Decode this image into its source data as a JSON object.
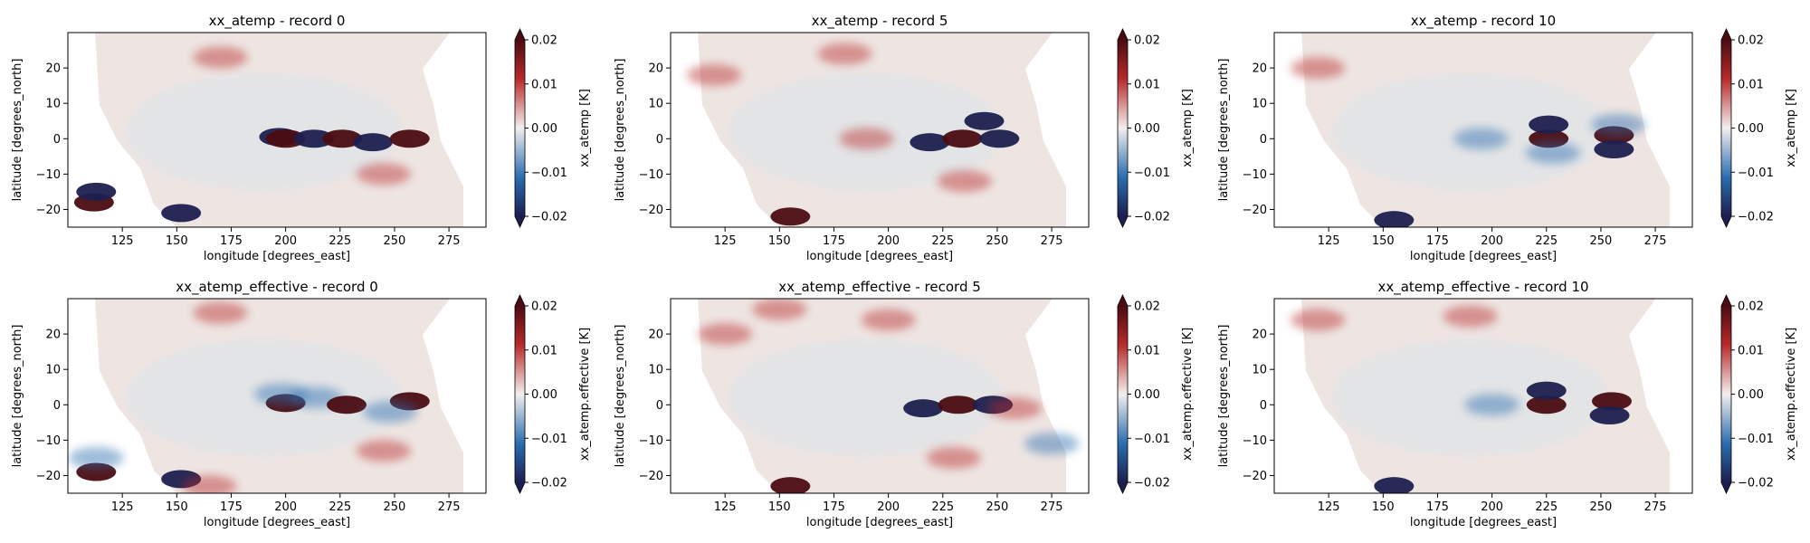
{
  "figure": {
    "colors": {
      "ocean_base": "#eee5e2",
      "land": "#ffffff",
      "negative_extreme": "#1c1f4f",
      "negative_mid": "#2a6db0",
      "neutral": "#f3efee",
      "positive_mid": "#b72a2a",
      "positive_extreme": "#4a0c12"
    },
    "colormap": "balance (diverging blue-white-red)",
    "colorbar_extend": "both"
  },
  "chart_data": [
    {
      "type": "heatmap",
      "title": "xx_atemp - record 0",
      "xlabel": "longitude [degrees_east]",
      "ylabel": "latitude [degrees_north]",
      "colorbar_label": "xx_atemp [K]",
      "xlim": [
        100,
        292
      ],
      "ylim": [
        -25,
        30
      ],
      "xticks": [
        "125",
        "150",
        "175",
        "200",
        "225",
        "250",
        "275"
      ],
      "yticks": [
        "20",
        "10",
        "0",
        "−10",
        "−20"
      ],
      "vlim": [
        -0.02,
        0.02
      ],
      "cbar_ticks": [
        "0.02",
        "0.01",
        "0.00",
        "−0.01",
        "−0.02"
      ],
      "features": [
        {
          "lon": 197,
          "lat": 0.5,
          "value": -0.02
        },
        {
          "lon": 200,
          "lat": 0,
          "value": 0.02
        },
        {
          "lon": 213,
          "lat": 0,
          "value": -0.02
        },
        {
          "lon": 226,
          "lat": 0,
          "value": 0.02
        },
        {
          "lon": 240,
          "lat": -1,
          "value": -0.02
        },
        {
          "lon": 257,
          "lat": 0,
          "value": 0.02
        },
        {
          "lon": 112,
          "lat": -18,
          "value": 0.02
        },
        {
          "lon": 113,
          "lat": -15,
          "value": -0.02
        },
        {
          "lon": 152,
          "lat": -21,
          "value": -0.02
        },
        {
          "lon": 170,
          "lat": 23,
          "value": 0.006
        },
        {
          "lon": 245,
          "lat": -10,
          "value": 0.005
        }
      ]
    },
    {
      "type": "heatmap",
      "title": "xx_atemp - record 5",
      "xlabel": "longitude [degrees_east]",
      "ylabel": "latitude [degrees_north]",
      "colorbar_label": "xx_atemp [K]",
      "xlim": [
        100,
        292
      ],
      "ylim": [
        -25,
        30
      ],
      "xticks": [
        "125",
        "150",
        "175",
        "200",
        "225",
        "250",
        "275"
      ],
      "yticks": [
        "20",
        "10",
        "0",
        "−10",
        "−20"
      ],
      "vlim": [
        -0.02,
        0.02
      ],
      "cbar_ticks": [
        "0.02",
        "0.01",
        "0.00",
        "−0.01",
        "−0.02"
      ],
      "features": [
        {
          "lon": 219,
          "lat": -1,
          "value": -0.02
        },
        {
          "lon": 234,
          "lat": 0,
          "value": 0.02
        },
        {
          "lon": 251,
          "lat": 0,
          "value": -0.02
        },
        {
          "lon": 244,
          "lat": 5,
          "value": -0.015
        },
        {
          "lon": 190,
          "lat": 0,
          "value": 0.01
        },
        {
          "lon": 155,
          "lat": -22,
          "value": 0.02
        },
        {
          "lon": 120,
          "lat": 18,
          "value": 0.012
        },
        {
          "lon": 180,
          "lat": 24,
          "value": 0.006
        },
        {
          "lon": 235,
          "lat": -12,
          "value": 0.006
        }
      ]
    },
    {
      "type": "heatmap",
      "title": "xx_atemp - record 10",
      "xlabel": "longitude [degrees_east]",
      "ylabel": "latitude [degrees_north]",
      "colorbar_label": "xx_atemp [K]",
      "xlim": [
        100,
        292
      ],
      "ylim": [
        -25,
        30
      ],
      "xticks": [
        "125",
        "150",
        "175",
        "200",
        "225",
        "250",
        "275"
      ],
      "yticks": [
        "20",
        "10",
        "0",
        "−10",
        "−20"
      ],
      "vlim": [
        -0.02,
        0.02
      ],
      "cbar_ticks": [
        "0.02",
        "0.01",
        "0.00",
        "−0.01",
        "−0.02"
      ],
      "features": [
        {
          "lon": 226,
          "lat": 0,
          "value": 0.02
        },
        {
          "lon": 226,
          "lat": 4,
          "value": -0.015
        },
        {
          "lon": 228,
          "lat": -4,
          "value": -0.012
        },
        {
          "lon": 256,
          "lat": 1,
          "value": 0.02
        },
        {
          "lon": 256,
          "lat": -3,
          "value": -0.02
        },
        {
          "lon": 258,
          "lat": 4,
          "value": -0.01
        },
        {
          "lon": 195,
          "lat": 0,
          "value": -0.008
        },
        {
          "lon": 155,
          "lat": -23,
          "value": -0.015
        },
        {
          "lon": 120,
          "lat": 20,
          "value": 0.006
        }
      ]
    },
    {
      "type": "heatmap",
      "title": "xx_atemp_effective - record 0",
      "xlabel": "longitude [degrees_east]",
      "ylabel": "latitude [degrees_north]",
      "colorbar_label": "xx_atemp.effective [K]",
      "xlim": [
        100,
        292
      ],
      "ylim": [
        -25,
        30
      ],
      "xticks": [
        "125",
        "150",
        "175",
        "200",
        "225",
        "250",
        "275"
      ],
      "yticks": [
        "20",
        "10",
        "0",
        "−10",
        "−20"
      ],
      "vlim": [
        -0.02,
        0.02
      ],
      "cbar_ticks": [
        "0.02",
        "0.01",
        "0.00",
        "−0.01",
        "−0.02"
      ],
      "features": [
        {
          "lon": 200,
          "lat": 0.5,
          "value": 0.02
        },
        {
          "lon": 198,
          "lat": 3,
          "value": -0.012
        },
        {
          "lon": 214,
          "lat": 2,
          "value": -0.01
        },
        {
          "lon": 228,
          "lat": 0,
          "value": 0.015
        },
        {
          "lon": 257,
          "lat": 1,
          "value": 0.02
        },
        {
          "lon": 248,
          "lat": -2,
          "value": -0.012
        },
        {
          "lon": 113,
          "lat": -19,
          "value": 0.02
        },
        {
          "lon": 113,
          "lat": -15,
          "value": -0.012
        },
        {
          "lon": 152,
          "lat": -21,
          "value": -0.02
        },
        {
          "lon": 165,
          "lat": -23,
          "value": 0.008
        },
        {
          "lon": 170,
          "lat": 26,
          "value": 0.01
        },
        {
          "lon": 245,
          "lat": -13,
          "value": 0.006
        }
      ]
    },
    {
      "type": "heatmap",
      "title": "xx_atemp_effective - record 5",
      "xlabel": "longitude [degrees_east]",
      "ylabel": "latitude [degrees_north]",
      "colorbar_label": "xx_atemp.effective [K]",
      "xlim": [
        100,
        292
      ],
      "ylim": [
        -25,
        30
      ],
      "xticks": [
        "125",
        "150",
        "175",
        "200",
        "225",
        "250",
        "275"
      ],
      "yticks": [
        "20",
        "10",
        "0",
        "−10",
        "−20"
      ],
      "vlim": [
        -0.02,
        0.02
      ],
      "cbar_ticks": [
        "0.02",
        "0.01",
        "0.00",
        "−0.01",
        "−0.02"
      ],
      "features": [
        {
          "lon": 216,
          "lat": -1,
          "value": -0.02
        },
        {
          "lon": 232,
          "lat": 0,
          "value": 0.02
        },
        {
          "lon": 248,
          "lat": 0,
          "value": -0.02
        },
        {
          "lon": 258,
          "lat": -1,
          "value": 0.01
        },
        {
          "lon": 275,
          "lat": -11,
          "value": -0.01
        },
        {
          "lon": 155,
          "lat": -23,
          "value": 0.02
        },
        {
          "lon": 125,
          "lat": 20,
          "value": 0.012
        },
        {
          "lon": 150,
          "lat": 27,
          "value": 0.008
        },
        {
          "lon": 200,
          "lat": 24,
          "value": 0.007
        },
        {
          "lon": 230,
          "lat": -15,
          "value": 0.008
        }
      ]
    },
    {
      "type": "heatmap",
      "title": "xx_atemp_effective - record 10",
      "xlabel": "longitude [degrees_east]",
      "ylabel": "latitude [degrees_north]",
      "colorbar_label": "xx_atemp.effective [K]",
      "xlim": [
        100,
        292
      ],
      "ylim": [
        -25,
        30
      ],
      "xticks": [
        "125",
        "150",
        "175",
        "200",
        "225",
        "250",
        "275"
      ],
      "yticks": [
        "20",
        "10",
        "0",
        "−10",
        "−20"
      ],
      "vlim": [
        -0.02,
        0.02
      ],
      "cbar_ticks": [
        "0.02",
        "0.01",
        "0.00",
        "−0.01",
        "−0.02"
      ],
      "features": [
        {
          "lon": 225,
          "lat": 0,
          "value": 0.02
        },
        {
          "lon": 225,
          "lat": 4,
          "value": -0.015
        },
        {
          "lon": 255,
          "lat": 1,
          "value": 0.02
        },
        {
          "lon": 254,
          "lat": -3,
          "value": -0.02
        },
        {
          "lon": 200,
          "lat": 0,
          "value": -0.008
        },
        {
          "lon": 155,
          "lat": -23,
          "value": -0.015
        },
        {
          "lon": 120,
          "lat": 24,
          "value": 0.008
        },
        {
          "lon": 190,
          "lat": 25,
          "value": 0.006
        }
      ]
    }
  ]
}
